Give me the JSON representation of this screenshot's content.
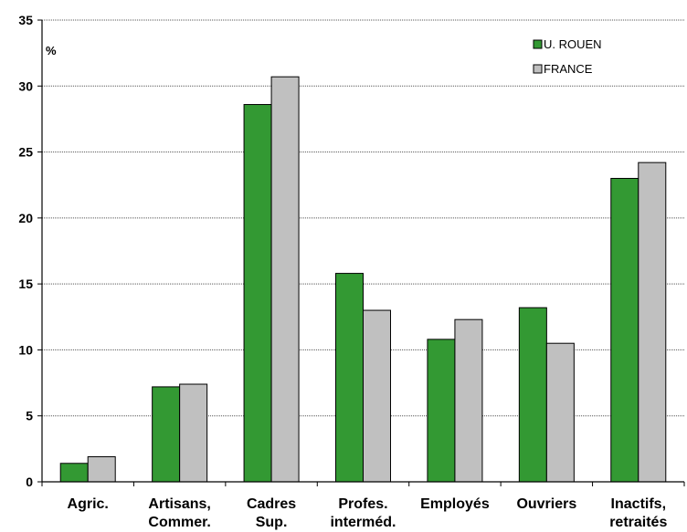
{
  "chart_data": {
    "type": "bar",
    "ylabel": "%",
    "ylim": [
      0,
      35
    ],
    "ytick_step": 5,
    "yticks": [
      "0",
      "5",
      "10",
      "15",
      "20",
      "25",
      "30",
      "35"
    ],
    "grid": true,
    "legend_position": "top-right",
    "categories": [
      [
        "Agric."
      ],
      [
        "Artisans,",
        "Commer."
      ],
      [
        "Cadres",
        "Sup."
      ],
      [
        "Profes.",
        "interméd."
      ],
      [
        "Employés"
      ],
      [
        "Ouvriers"
      ],
      [
        "Inactifs,",
        "retraités"
      ]
    ],
    "series": [
      {
        "name": "U. ROUEN",
        "color": "#339933",
        "values": [
          1.4,
          7.2,
          28.6,
          15.8,
          10.8,
          13.2,
          23.0
        ]
      },
      {
        "name": "FRANCE",
        "color": "#c0c0c0",
        "values": [
          1.9,
          7.4,
          30.7,
          13.0,
          12.3,
          10.5,
          24.2
        ]
      }
    ]
  }
}
